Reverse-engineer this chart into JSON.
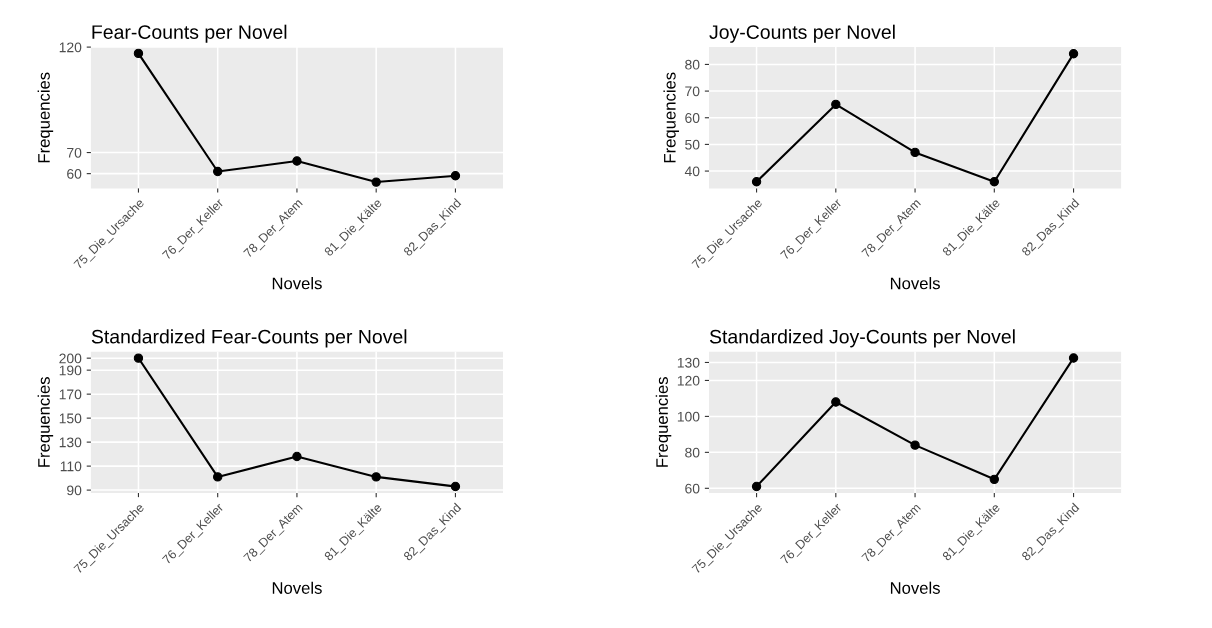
{
  "chart_data": [
    {
      "type": "line",
      "title": "Fear-Counts per Novel",
      "xlabel": "Novels",
      "ylabel": "Frequencies",
      "categories": [
        "75_Die_Ursache",
        "76_Der_Keller",
        "78_Der_Atem",
        "81_Die_Kälte",
        "82_Das_Kind"
      ],
      "series": [
        {
          "color": "#000000",
          "values": [
            117,
            61,
            66,
            56,
            59
          ]
        }
      ],
      "ylim": [
        53,
        120
      ],
      "yticks": [
        60,
        70,
        120
      ],
      "grid": true,
      "marker": "circle",
      "line_style": "solid"
    },
    {
      "type": "line",
      "title": "Joy-Counts per Novel",
      "xlabel": "Novels",
      "ylabel": "Frequencies",
      "categories": [
        "75_Die_Ursache",
        "76_Der_Keller",
        "78_Der_Atem",
        "81_Die_Kälte",
        "82_Das_Kind"
      ],
      "series": [
        {
          "color": "#000000",
          "values": [
            36,
            65,
            47,
            36,
            84
          ]
        }
      ],
      "ylim": [
        33.5,
        86.5
      ],
      "yticks": [
        40,
        50,
        60,
        70,
        80
      ],
      "grid": true,
      "marker": "circle",
      "line_style": "solid"
    },
    {
      "type": "line",
      "title": "Standardized Fear-Counts per Novel",
      "xlabel": "Novels",
      "ylabel": "Frequencies",
      "categories": [
        "75_Die_Ursache",
        "76_Der_Keller",
        "78_Der_Atem",
        "81_Die_Kälte",
        "82_Das_Kind"
      ],
      "series": [
        {
          "color": "#000000",
          "values": [
            200,
            101,
            118,
            101,
            93
          ]
        }
      ],
      "ylim": [
        87.6,
        205.4
      ],
      "yticks": [
        90,
        110,
        130,
        150,
        170,
        190,
        200
      ],
      "grid": true,
      "marker": "circle",
      "line_style": "solid"
    },
    {
      "type": "line",
      "title": "Standardized Joy-Counts per Novel",
      "xlabel": "Novels",
      "ylabel": "Frequencies",
      "categories": [
        "75_Die_Ursache",
        "76_Der_Keller",
        "78_Der_Atem",
        "81_Die_Kälte",
        "82_Das_Kind"
      ],
      "series": [
        {
          "color": "#000000",
          "values": [
            61,
            108,
            84,
            65,
            132.5
          ]
        }
      ],
      "ylim": [
        57.4,
        136
      ],
      "yticks": [
        60,
        80,
        100,
        120,
        130
      ],
      "grid": true,
      "marker": "circle",
      "line_style": "solid"
    }
  ]
}
